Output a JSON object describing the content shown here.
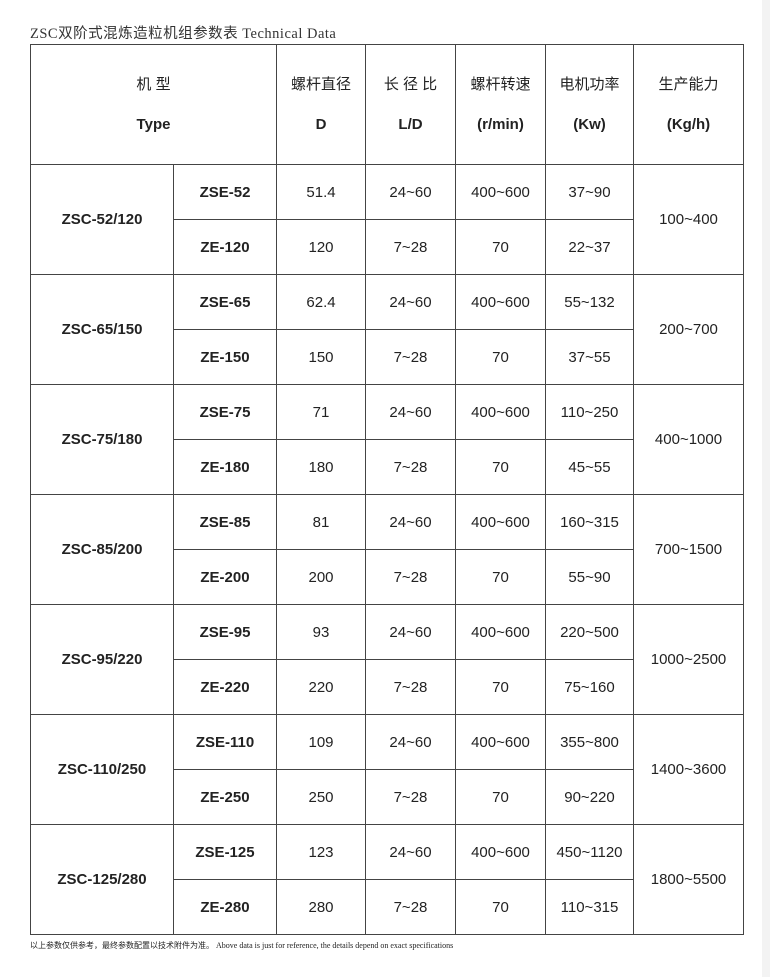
{
  "title": "ZSC双阶式混炼造粒机组参数表 Technical Data",
  "headers": [
    {
      "cn": "机 型",
      "en": "Type"
    },
    {
      "cn": "螺杆直径",
      "en": "D"
    },
    {
      "cn": "长 径 比",
      "en": "L/D"
    },
    {
      "cn": "螺杆转速",
      "en": "(r/min)"
    },
    {
      "cn": "电机功率",
      "en": "(Kw)"
    },
    {
      "cn": "生产能力",
      "en": "(Kg/h)"
    }
  ],
  "groups": [
    {
      "model": "ZSC-52/120",
      "capacity": "100~400",
      "rows": [
        [
          "ZSE-52",
          "51.4",
          "24~60",
          "400~600",
          "37~90"
        ],
        [
          "ZE-120",
          "120",
          "7~28",
          "70",
          "22~37"
        ]
      ]
    },
    {
      "model": "ZSC-65/150",
      "capacity": "200~700",
      "rows": [
        [
          "ZSE-65",
          "62.4",
          "24~60",
          "400~600",
          "55~132"
        ],
        [
          "ZE-150",
          "150",
          "7~28",
          "70",
          "37~55"
        ]
      ]
    },
    {
      "model": "ZSC-75/180",
      "capacity": "400~1000",
      "rows": [
        [
          "ZSE-75",
          "71",
          "24~60",
          "400~600",
          "110~250"
        ],
        [
          "ZE-180",
          "180",
          "7~28",
          "70",
          "45~55"
        ]
      ]
    },
    {
      "model": "ZSC-85/200",
      "capacity": "700~1500",
      "rows": [
        [
          "ZSE-85",
          "81",
          "24~60",
          "400~600",
          "160~315"
        ],
        [
          "ZE-200",
          "200",
          "7~28",
          "70",
          "55~90"
        ]
      ]
    },
    {
      "model": "ZSC-95/220",
      "capacity": "1000~2500",
      "rows": [
        [
          "ZSE-95",
          "93",
          "24~60",
          "400~600",
          "220~500"
        ],
        [
          "ZE-220",
          "220",
          "7~28",
          "70",
          "75~160"
        ]
      ]
    },
    {
      "model": "ZSC-110/250",
      "capacity": "1400~3600",
      "rows": [
        [
          "ZSE-110",
          "109",
          "24~60",
          "400~600",
          "355~800"
        ],
        [
          "ZE-250",
          "250",
          "7~28",
          "70",
          "90~220"
        ]
      ]
    },
    {
      "model": "ZSC-125/280",
      "capacity": "1800~5500",
      "rows": [
        [
          "ZSE-125",
          "123",
          "24~60",
          "400~600",
          "450~1120"
        ],
        [
          "ZE-280",
          "280",
          "7~28",
          "70",
          "110~315"
        ]
      ]
    }
  ],
  "footnote": "以上参数仅供参考，最终参数配置以技术附件为准。 Above data is just for reference, the details depend on exact specifications"
}
